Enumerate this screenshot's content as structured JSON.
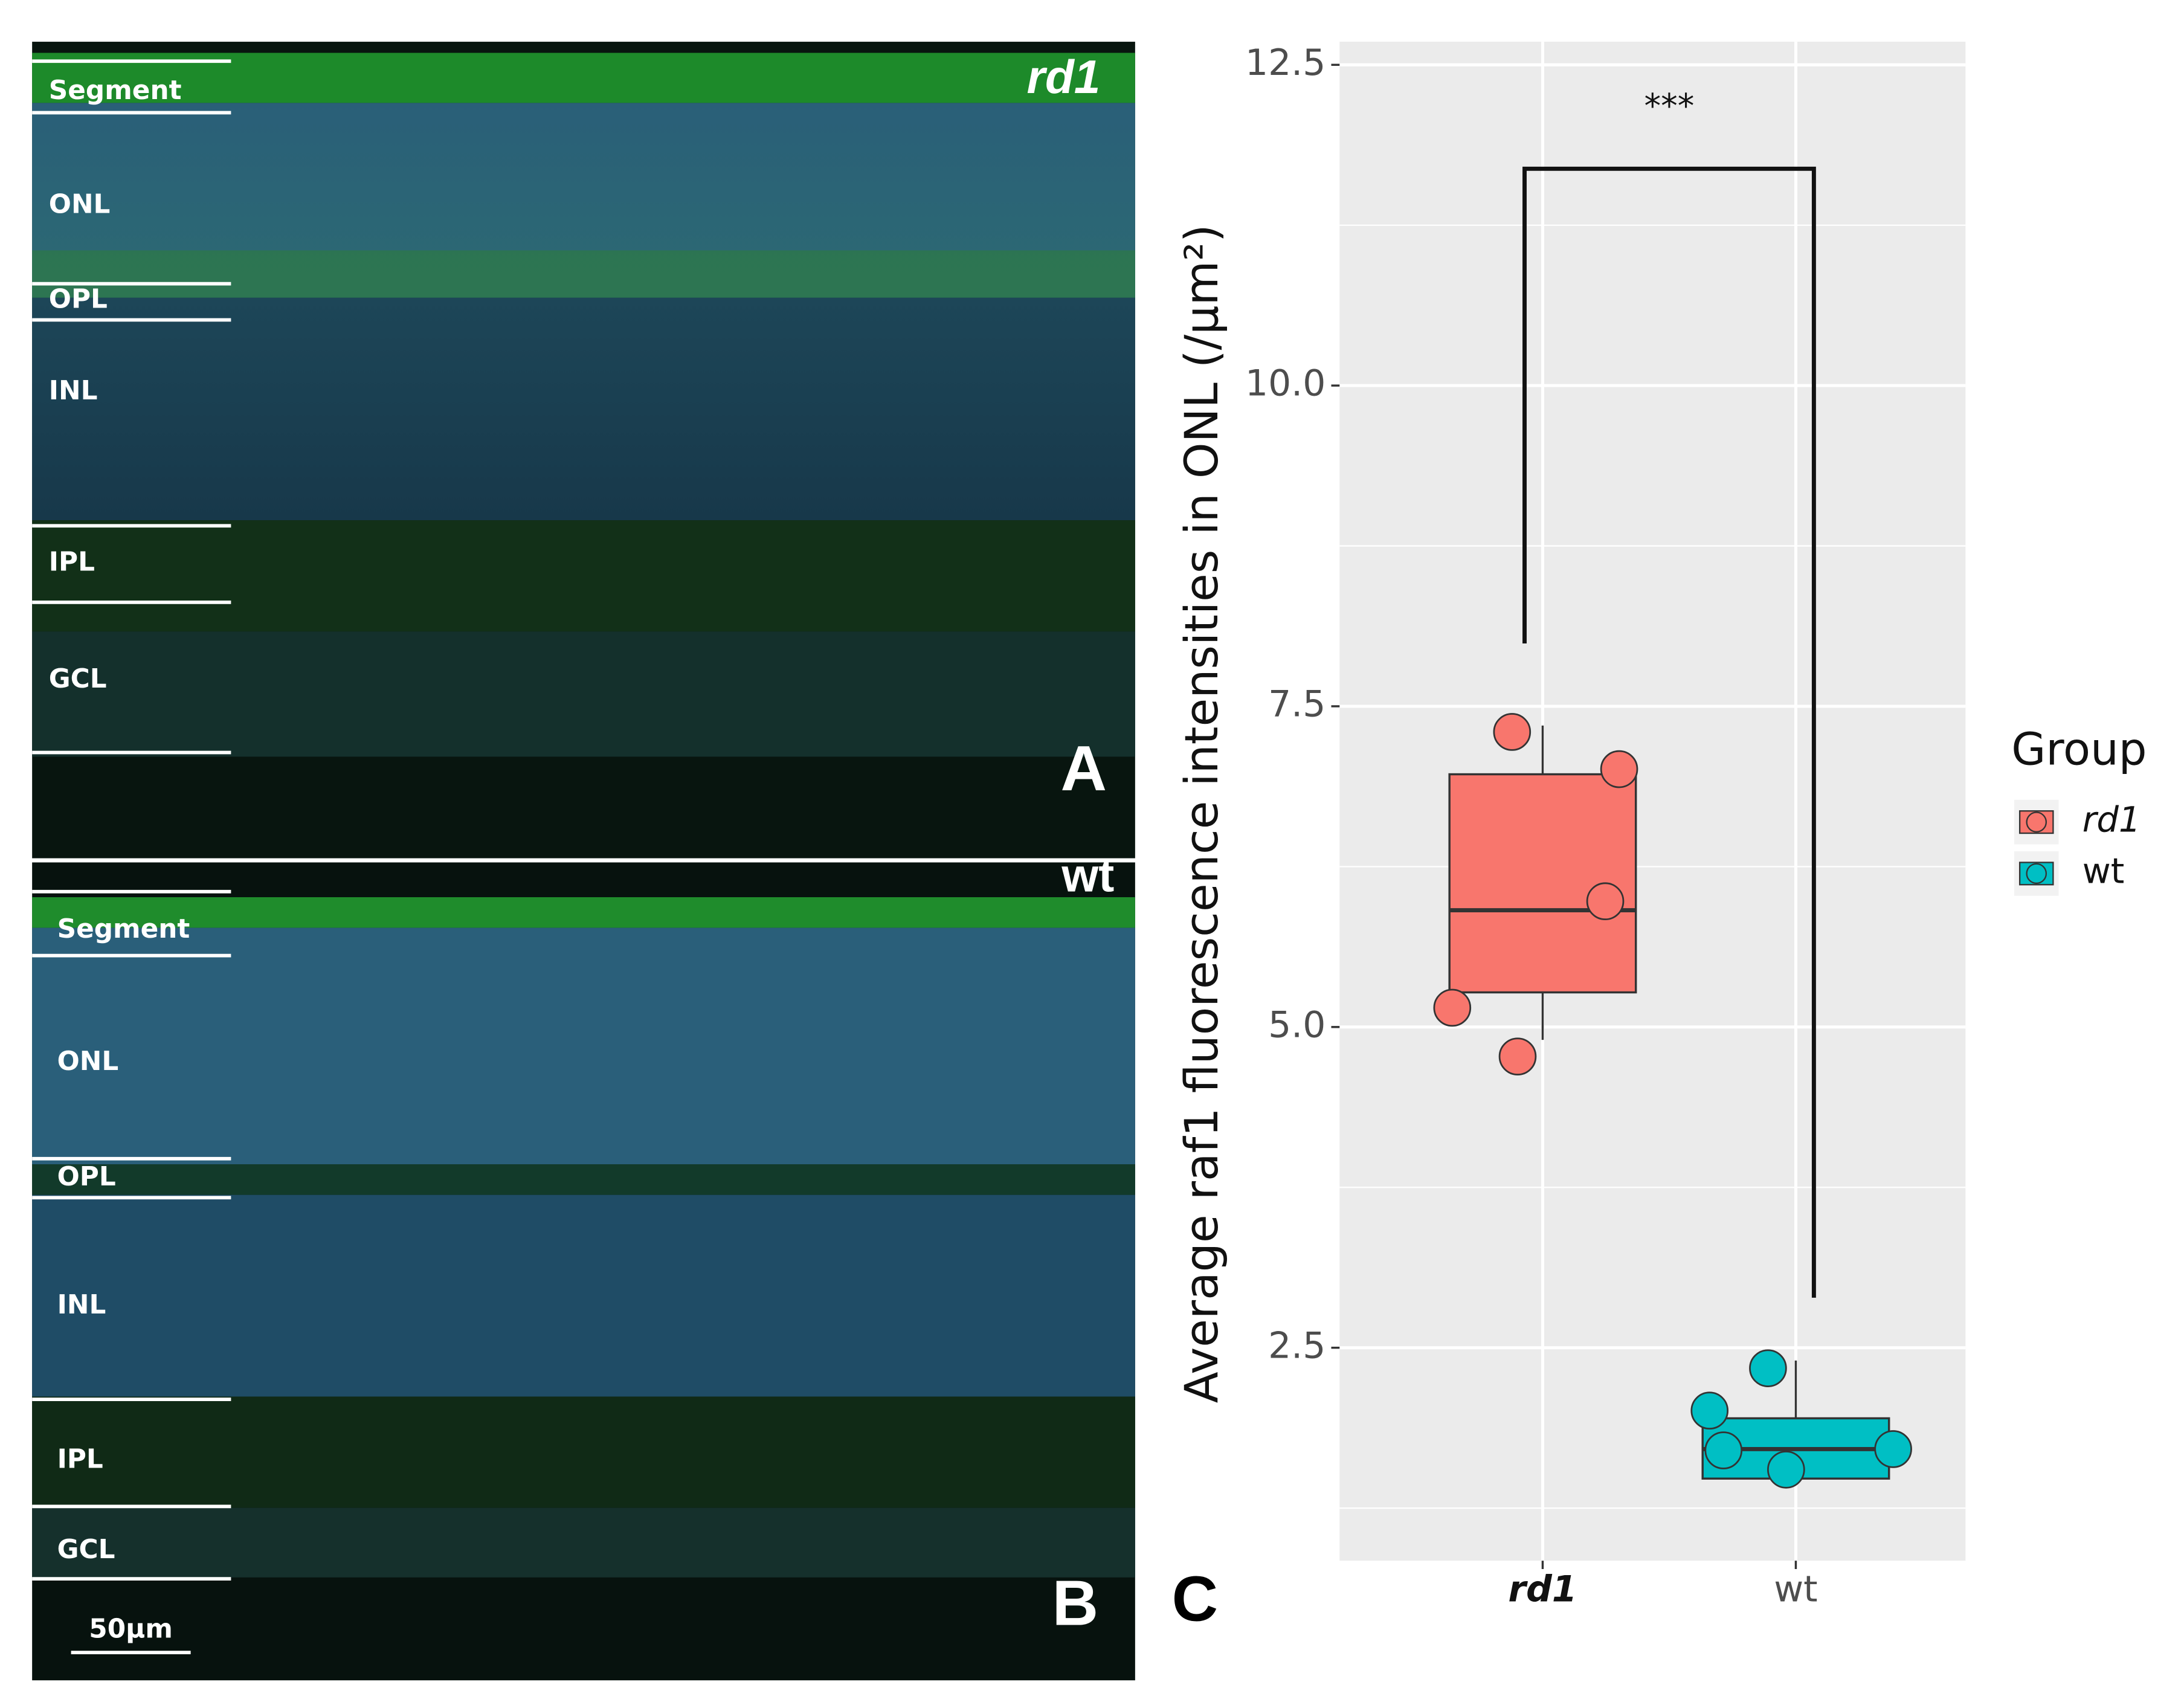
{
  "panels": [
    {
      "letter": "A",
      "tag": "rd1",
      "layers": [
        "Segment",
        "ONL",
        "OPL",
        "INL",
        "IPL",
        "GCL"
      ]
    },
    {
      "letter": "B",
      "tag": "wt",
      "layers": [
        "Segment",
        "ONL",
        "OPL",
        "INL",
        "IPL",
        "GCL"
      ],
      "scale_bar": "50µm"
    }
  ],
  "chart_data": {
    "type": "box",
    "panel_letter": "C",
    "y_label": "Average raf1 fluorescence intensities in ONL (/µm²)",
    "categories": [
      "rd1",
      "wt"
    ],
    "legend_title": "Group",
    "legend": "right",
    "series": [
      {
        "name": "rd1",
        "color": "#f8766d",
        "whisker_low": 4.9,
        "q1": 5.27,
        "median": 5.91,
        "q3": 6.97,
        "whisker_high": 7.35,
        "points": [
          7.3,
          7.01,
          5.98,
          5.15,
          4.77
        ]
      },
      {
        "name": "wt",
        "color": "#00bfc4",
        "whisker_low": 1.48,
        "q1": 1.48,
        "median": 1.71,
        "q3": 1.95,
        "whisker_high": 2.4,
        "points": [
          2.34,
          2.01,
          1.7,
          1.55,
          1.71
        ]
      }
    ],
    "ylim": [
      0.84,
      12.68
    ],
    "yticks": [
      {
        "value": 2.5,
        "label": "2.5"
      },
      {
        "value": 5,
        "label": "5.0"
      },
      {
        "value": 7.5,
        "label": "7.5"
      },
      {
        "value": 10,
        "label": "10.0"
      },
      {
        "value": 12.5,
        "label": "12.5"
      }
    ],
    "minor_yticks": [
      1.25,
      3.75,
      6.25,
      8.75,
      11.25
    ],
    "grid": true,
    "significance": {
      "label": "***",
      "top": 11.69,
      "left_end": 7.99,
      "right_end": 2.89
    }
  }
}
